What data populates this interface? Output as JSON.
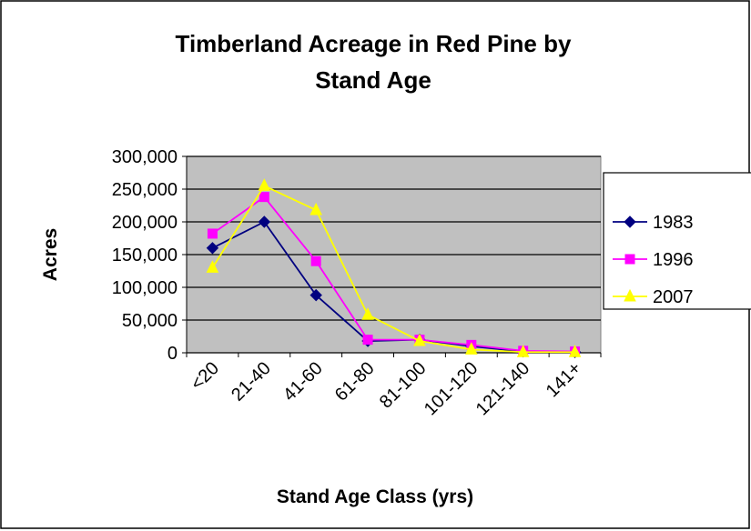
{
  "chart_data": {
    "type": "line",
    "title": "Timberland Acreage in Red Pine by Stand Age",
    "x_label": "Stand Age Class (yrs)",
    "y_label": "Acres",
    "categories": [
      "<20",
      "21-40",
      "41-60",
      "61-80",
      "81-100",
      "101-120",
      "121-140",
      "141+"
    ],
    "series": [
      {
        "name": "1983",
        "color": "#000080",
        "marker": "diamond",
        "values": [
          160000,
          200000,
          88000,
          18000,
          20000,
          10000,
          2000,
          1000
        ]
      },
      {
        "name": "1996",
        "color": "#ff00ff",
        "marker": "square",
        "values": [
          182000,
          238000,
          140000,
          20000,
          20000,
          12000,
          3000,
          2000
        ]
      },
      {
        "name": "2007",
        "color": "#ffff00",
        "marker": "triangle",
        "values": [
          130000,
          255000,
          218000,
          58000,
          18000,
          5000,
          1000,
          1000
        ]
      }
    ],
    "ylim": [
      0,
      300000
    ],
    "yticks": [
      0,
      {
        "value": 50000,
        "label": "50,000"
      },
      {
        "value": 100000,
        "label": "100,000"
      },
      {
        "value": 150000,
        "label": "150,000"
      },
      {
        "value": 200000,
        "label": "200,000"
      },
      {
        "value": 250000,
        "label": "250,000"
      },
      {
        "value": 300000,
        "label": "300,000"
      }
    ],
    "grid": true,
    "legend": "right",
    "plot_background": "#c0c0c0"
  }
}
